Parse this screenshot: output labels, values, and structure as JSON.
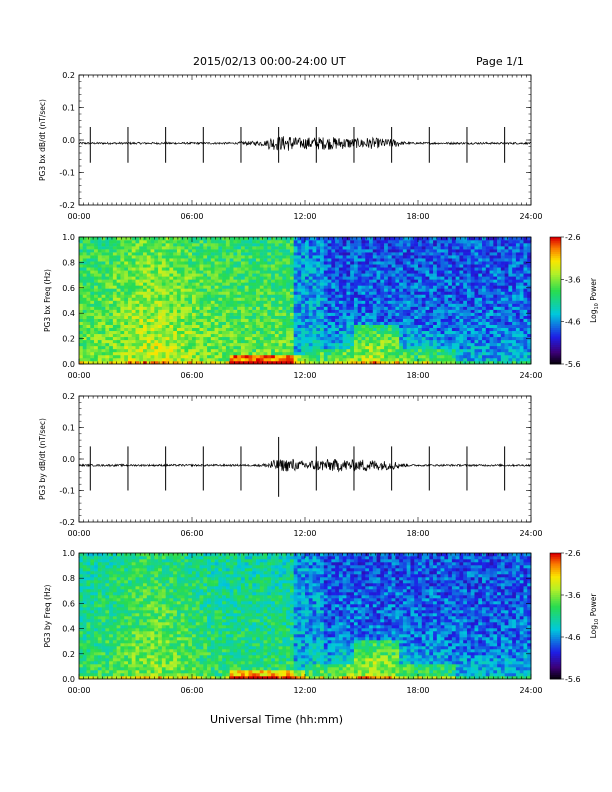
{
  "header": {
    "date_range": "2015/02/13  00:00-24:00 UT",
    "page": "Page 1/1"
  },
  "xaxis": {
    "label": "Universal Time (hh:mm)",
    "ticks": [
      "00:00",
      "06:00",
      "12:00",
      "18:00",
      "24:00"
    ]
  },
  "colorbar": {
    "label": "Log10 Power",
    "label_main": "Log",
    "label_sub": "10",
    "label_tail": " Power",
    "ticks": [
      "-2.6",
      "-3.6",
      "-4.6",
      "-5.6"
    ],
    "range": [
      -5.6,
      -2.6
    ]
  },
  "chart_data": [
    {
      "type": "line",
      "ylabel": "PG3 bx dB/dt (nT/sec)",
      "xlim": [
        0,
        24
      ],
      "ylim": [
        -0.2,
        0.2
      ],
      "yticks": [
        "0.2",
        "0.1",
        "0.0",
        "-0.1",
        "-0.2"
      ],
      "baseline": -0.01,
      "spikes": [
        {
          "t": 0.6,
          "up": 0.04,
          "down": -0.07
        },
        {
          "t": 2.6,
          "up": 0.04,
          "down": -0.07
        },
        {
          "t": 4.6,
          "up": 0.04,
          "down": -0.07
        },
        {
          "t": 6.6,
          "up": 0.04,
          "down": -0.07
        },
        {
          "t": 8.6,
          "up": 0.04,
          "down": -0.07
        },
        {
          "t": 10.6,
          "up": 0.04,
          "down": -0.07
        },
        {
          "t": 12.6,
          "up": 0.04,
          "down": -0.07
        },
        {
          "t": 14.6,
          "up": 0.04,
          "down": -0.07
        },
        {
          "t": 16.6,
          "up": 0.04,
          "down": -0.07
        },
        {
          "t": 18.6,
          "up": 0.04,
          "down": -0.07
        },
        {
          "t": 20.6,
          "up": 0.04,
          "down": -0.07
        },
        {
          "t": 22.6,
          "up": 0.04,
          "down": -0.07
        }
      ],
      "activity_window": [
        8.5,
        17.5
      ]
    },
    {
      "type": "heatmap",
      "ylabel": "PG3 bx Freq (Hz)",
      "xlim": [
        0,
        24
      ],
      "ylim": [
        0,
        1
      ],
      "yticks": [
        "1.0",
        "0.8",
        "0.6",
        "0.4",
        "0.2",
        "0.0"
      ]
    },
    {
      "type": "line",
      "ylabel": "PG3 by dB/dt (nT/sec)",
      "xlim": [
        0,
        24
      ],
      "ylim": [
        -0.2,
        0.2
      ],
      "yticks": [
        "0.2",
        "0.1",
        "0.0",
        "-0.1",
        "-0.2"
      ],
      "baseline": -0.02,
      "spikes": [
        {
          "t": 0.6,
          "up": 0.04,
          "down": -0.1
        },
        {
          "t": 2.6,
          "up": 0.04,
          "down": -0.1
        },
        {
          "t": 4.6,
          "up": 0.04,
          "down": -0.1
        },
        {
          "t": 6.6,
          "up": 0.04,
          "down": -0.1
        },
        {
          "t": 8.6,
          "up": 0.04,
          "down": -0.1
        },
        {
          "t": 10.6,
          "up": 0.07,
          "down": -0.12
        },
        {
          "t": 12.6,
          "up": 0.04,
          "down": -0.1
        },
        {
          "t": 14.6,
          "up": 0.04,
          "down": -0.1
        },
        {
          "t": 16.6,
          "up": 0.04,
          "down": -0.1
        },
        {
          "t": 18.6,
          "up": 0.04,
          "down": -0.1
        },
        {
          "t": 20.6,
          "up": 0.04,
          "down": -0.1
        },
        {
          "t": 22.6,
          "up": 0.04,
          "down": -0.1
        }
      ],
      "activity_window": [
        9.5,
        17.5
      ]
    },
    {
      "type": "heatmap",
      "ylabel": "PG3 by Freq (Hz)",
      "xlim": [
        0,
        24
      ],
      "ylim": [
        0,
        1
      ],
      "yticks": [
        "1.0",
        "0.8",
        "0.6",
        "0.4",
        "0.2",
        "0.0"
      ]
    }
  ]
}
